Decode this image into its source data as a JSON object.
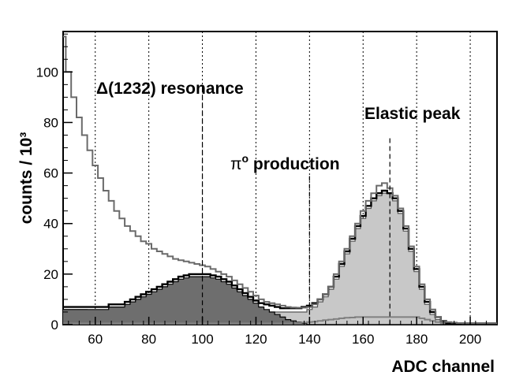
{
  "chart_data": {
    "type": "area",
    "title": "",
    "xlabel": "ADC channel",
    "ylabel": "counts / 10³",
    "xlim": [
      48,
      210
    ],
    "ylim": [
      0,
      116
    ],
    "grid": "vertical dotted",
    "x_ticks": [
      60,
      80,
      100,
      120,
      140,
      160,
      180,
      200
    ],
    "y_ticks": [
      0,
      20,
      40,
      60,
      80,
      100
    ],
    "markers": [
      {
        "x": 100,
        "style": "dashed"
      },
      {
        "x": 140,
        "style": "dashed"
      },
      {
        "x": 170,
        "style": "dashed"
      }
    ],
    "annotations": [
      {
        "text": "Δ(1232) resonance",
        "x": 94,
        "y": 103
      },
      {
        "text": "π",
        "sup": "o",
        "suffix": " production",
        "x": 137,
        "y": 69
      },
      {
        "text": "Elastic peak",
        "x": 170,
        "y": 84
      }
    ],
    "x": [
      48,
      50,
      52,
      54,
      56,
      58,
      60,
      62,
      64,
      66,
      68,
      70,
      72,
      74,
      76,
      78,
      80,
      82,
      84,
      86,
      88,
      90,
      92,
      94,
      96,
      98,
      100,
      102,
      104,
      106,
      108,
      110,
      112,
      114,
      116,
      118,
      120,
      122,
      124,
      126,
      128,
      130,
      132,
      134,
      136,
      138,
      140,
      142,
      144,
      146,
      148,
      150,
      152,
      154,
      156,
      158,
      160,
      162,
      164,
      166,
      168,
      170,
      172,
      174,
      176,
      178,
      180,
      182,
      184,
      186,
      188,
      190,
      192,
      194,
      196,
      198,
      200,
      202,
      204,
      206,
      208,
      210
    ],
    "series": [
      {
        "color": "#c8c8c8",
        "fill": true,
        "values": [
          6,
          6,
          6,
          6,
          6,
          5,
          5,
          5,
          5,
          5,
          5,
          5,
          5,
          5,
          5,
          5,
          5,
          5,
          5,
          5,
          5,
          5,
          5,
          5,
          5,
          5,
          5,
          5,
          5,
          5,
          5,
          5,
          5,
          5,
          5,
          5,
          5,
          5,
          5,
          5,
          5,
          5,
          5,
          5,
          5,
          5,
          6,
          7,
          9,
          11,
          14,
          18,
          23,
          28,
          33,
          38,
          42,
          46,
          49,
          51,
          52,
          52,
          49,
          44,
          37,
          29,
          21,
          14,
          8,
          4,
          2,
          1,
          0,
          0,
          0,
          0,
          0,
          0,
          0,
          0,
          0,
          0
        ]
      },
      {
        "color": "#6e6e6e",
        "fill": true,
        "values": [
          6,
          6,
          6,
          6,
          6,
          6,
          6,
          6,
          6,
          7,
          7,
          7,
          8,
          9,
          10,
          11,
          12,
          13,
          14,
          15,
          16,
          17,
          18,
          18.5,
          19,
          19,
          19,
          19,
          18.5,
          18,
          17,
          16,
          14.5,
          13,
          11.5,
          10,
          8.5,
          7,
          6,
          5,
          4,
          3,
          2,
          1.5,
          1,
          0.5,
          0,
          0,
          0,
          0,
          0,
          0,
          0,
          0,
          0,
          0,
          0,
          0,
          0,
          0,
          0,
          0,
          0,
          0,
          0,
          0,
          0,
          0,
          0,
          0,
          0,
          0,
          0,
          0,
          0,
          0,
          0,
          0,
          0,
          0,
          0,
          0
        ]
      },
      {
        "color": "#808080",
        "fill": false,
        "values": [
          0.5,
          0.5,
          0.5,
          0.5,
          0.5,
          0.5,
          0.5,
          0.5,
          0.5,
          0.5,
          0.5,
          0.5,
          0.5,
          0.5,
          0.5,
          0.5,
          0.5,
          0.5,
          0.5,
          0.5,
          0.5,
          0.5,
          0.5,
          0.5,
          0.5,
          0.5,
          0.5,
          0.5,
          0.5,
          0.5,
          0.5,
          0.5,
          0.5,
          0.5,
          0.5,
          0.5,
          0.5,
          0.5,
          0.5,
          0.5,
          0.5,
          0.5,
          0.5,
          0.6,
          0.7,
          0.8,
          1,
          1.2,
          1.5,
          1.8,
          2,
          2.2,
          2.5,
          2.7,
          2.8,
          3,
          3,
          3,
          3,
          3,
          3,
          3,
          3,
          3,
          3,
          3,
          3,
          2.5,
          2,
          1.5,
          1,
          0.5,
          0.5,
          0.5,
          0.5,
          0.5,
          0.5,
          0.5,
          0.5,
          0.5,
          0.5,
          0.5
        ]
      },
      {
        "color": "#000000",
        "fill": false,
        "values": [
          7,
          7,
          7,
          7,
          7,
          7,
          7,
          7,
          7,
          8,
          8,
          8,
          9,
          10,
          11,
          12,
          13,
          14,
          15,
          16,
          17,
          18,
          19,
          19.5,
          20,
          20,
          20,
          20,
          19.5,
          19,
          18,
          17,
          15.5,
          14,
          12.5,
          11,
          9.5,
          8.5,
          8,
          7.5,
          7,
          6.5,
          6.5,
          6.5,
          6.5,
          7,
          7.5,
          8.5,
          10,
          12,
          15,
          19,
          24,
          29,
          34,
          39,
          43,
          47,
          50,
          52,
          53,
          52,
          50,
          45,
          38,
          30,
          22,
          15,
          9,
          5,
          3,
          1.5,
          0.5,
          0.5,
          0.5,
          0.5,
          0.5,
          0.5,
          0.5,
          0.5,
          0.5,
          0.5
        ]
      },
      {
        "color": "#6a6a6a",
        "fill": false,
        "values": [
          114,
          100,
          90,
          82,
          75,
          69,
          63,
          58,
          53,
          49,
          45,
          42,
          39,
          37,
          35,
          33,
          32,
          30,
          29,
          28,
          27,
          26,
          25.5,
          25,
          24.5,
          24,
          23.5,
          23,
          22,
          21,
          20,
          19,
          17.5,
          16,
          14.5,
          13,
          11.5,
          10,
          9,
          8.5,
          8,
          7.5,
          7,
          6.8,
          6.7,
          6.7,
          7,
          8,
          10,
          12,
          15,
          20,
          25,
          30,
          35,
          40,
          45,
          49,
          52,
          55,
          56,
          54,
          51,
          46,
          39,
          31,
          23,
          16,
          10,
          6,
          3,
          1.5,
          1,
          0.8,
          0.6,
          0.5,
          0.5,
          0.5,
          0.5,
          0.5,
          0.5,
          0.5
        ]
      }
    ]
  }
}
